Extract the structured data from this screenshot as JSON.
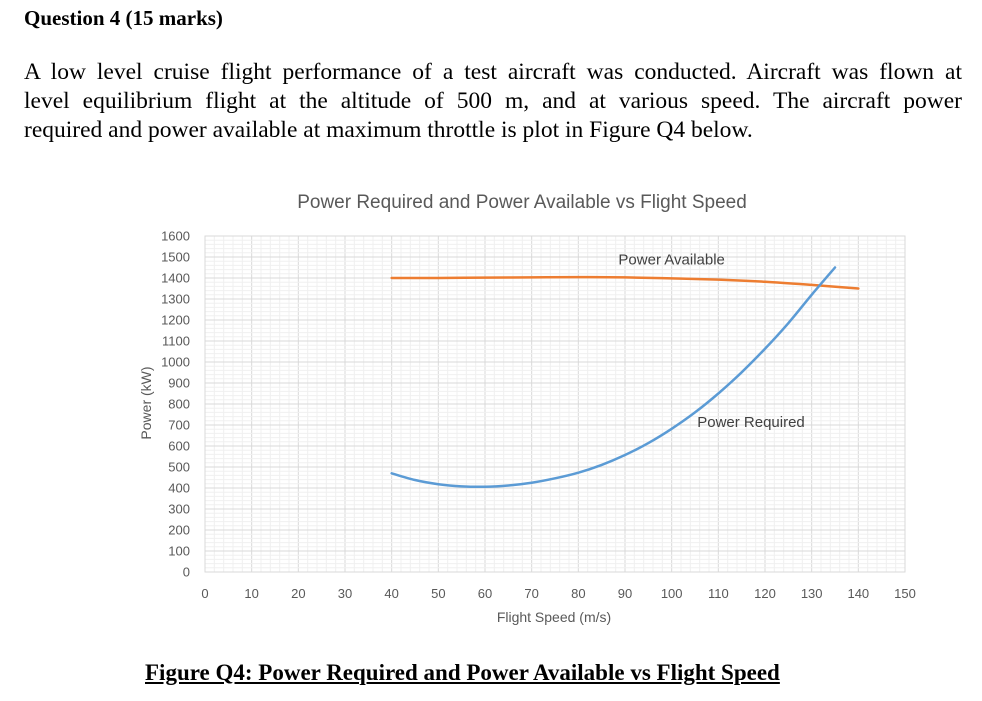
{
  "question": {
    "heading": "Question 4 (15 marks)",
    "paragraph_lines": [
      "A low level cruise flight performance of a test aircraft was conducted.  Aircraft was flown at",
      "level equilibrium flight at the altitude of 500 m, and at various speed.  The aircraft power",
      "required and power available at maximum throttle is plot in Figure Q4 below."
    ]
  },
  "chart_data": {
    "type": "line",
    "title": "Power Required and Power Available vs Flight Speed",
    "xlabel": "Flight Speed (m/s)",
    "ylabel": "Power (kW)",
    "xlim": [
      0,
      150
    ],
    "ylim": [
      0,
      1600
    ],
    "x_ticks": [
      "0",
      "10",
      "20",
      "30",
      "40",
      "50",
      "60",
      "70",
      "80",
      "90",
      "100",
      "110",
      "120",
      "130",
      "140",
      "150"
    ],
    "y_ticks": [
      "0",
      "100",
      "200",
      "300",
      "400",
      "500",
      "600",
      "700",
      "800",
      "900",
      "1000",
      "1100",
      "1200",
      "1300",
      "1400",
      "1500",
      "1600"
    ],
    "grid": true,
    "legend": "none",
    "series": [
      {
        "name": "Power Available",
        "color": "#ED7D31",
        "x": [
          40,
          50,
          60,
          70,
          80,
          90,
          100,
          110,
          120,
          130,
          140
        ],
        "y": [
          1400,
          1400,
          1402,
          1403,
          1404,
          1403,
          1398,
          1392,
          1382,
          1367,
          1350
        ]
      },
      {
        "name": "Power Required",
        "color": "#5B9BD5",
        "x": [
          40,
          45,
          50,
          55,
          60,
          65,
          70,
          75,
          80,
          85,
          90,
          95,
          100,
          105,
          110,
          115,
          120,
          125,
          130,
          135
        ],
        "y": [
          470,
          438,
          418,
          408,
          406,
          412,
          425,
          446,
          473,
          510,
          557,
          614,
          682,
          760,
          850,
          951,
          1063,
          1185,
          1320,
          1450
        ]
      }
    ],
    "annotations": [
      {
        "text": "Power Available",
        "series": "Power Available"
      },
      {
        "text": "Power Required",
        "series": "Power Required"
      }
    ]
  },
  "figure": {
    "caption": "Figure Q4: Power Required and Power Available vs Flight Speed"
  }
}
